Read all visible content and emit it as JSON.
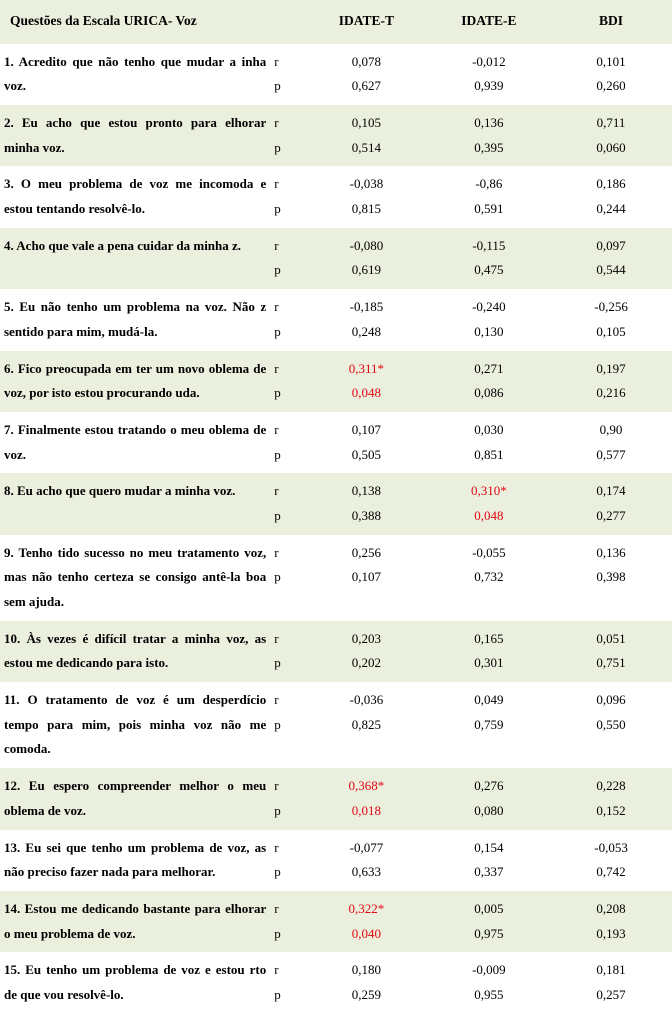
{
  "colors": {
    "band": "#eaf0dd",
    "bg": "#ffffff",
    "text": "#000000",
    "significant": "#e30613"
  },
  "fonts": {
    "family": "Times New Roman",
    "header_size_pt": 10,
    "body_size_pt": 10,
    "bold_questions": true
  },
  "header": {
    "question": "Questões da Escala URICA- Voz",
    "c1": "IDATE-T",
    "c2": "IDATE-E",
    "c3": "BDI"
  },
  "stat_labels": {
    "r": "r",
    "p": "p"
  },
  "rows": [
    {
      "q": "1. Acredito que não tenho que mudar a inha voz.",
      "r": {
        "c1": "0,078",
        "c2": "-0,012",
        "c3": "0,101"
      },
      "p": {
        "c1": "0,627",
        "c2": "0,939",
        "c3": "0,260"
      },
      "sig": {}
    },
    {
      "q": "2. Eu acho que estou pronto para elhorar minha voz.",
      "r": {
        "c1": "0,105",
        "c2": "0,136",
        "c3": "0,711"
      },
      "p": {
        "c1": "0,514",
        "c2": "0,395",
        "c3": "0,060"
      },
      "sig": {}
    },
    {
      "q": "3. O meu problema de voz me incomoda e  estou tentando resolvê-lo.",
      "r": {
        "c1": "-0,038",
        "c2": "-0,86",
        "c3": "0,186"
      },
      "p": {
        "c1": "0,815",
        "c2": "0,591",
        "c3": "0,244"
      },
      "sig": {}
    },
    {
      "q": "4. Acho que vale a pena cuidar da minha z.",
      "r": {
        "c1": "-0,080",
        "c2": "-0,115",
        "c3": "0,097"
      },
      "p": {
        "c1": "0,619",
        "c2": "0,475",
        "c3": "0,544"
      },
      "sig": {}
    },
    {
      "q": "5. Eu não tenho um problema na voz. Não z sentido para mim, mudá-la.",
      "r": {
        "c1": "-0,185",
        "c2": "-0,240",
        "c3": "-0,256"
      },
      "p": {
        "c1": "0,248",
        "c2": "0,130",
        "c3": "0,105"
      },
      "sig": {}
    },
    {
      "q": "6. Fico preocupada em ter um novo oblema de voz, por isto estou procurando uda.",
      "r": {
        "c1": "0,311*",
        "c2": "0,271",
        "c3": "0,197"
      },
      "p": {
        "c1": "0,048",
        "c2": "0,086",
        "c3": "0,216"
      },
      "sig": {
        "c1": true
      }
    },
    {
      "q": "7. Finalmente estou tratando o meu oblema de voz.",
      "r": {
        "c1": "0,107",
        "c2": "0,030",
        "c3": "0,90"
      },
      "p": {
        "c1": "0,505",
        "c2": "0,851",
        "c3": "0,577"
      },
      "sig": {}
    },
    {
      "q": "8. Eu acho que quero mudar a minha voz.",
      "r": {
        "c1": "0,138",
        "c2": "0,310*",
        "c3": "0,174"
      },
      "p": {
        "c1": "0,388",
        "c2": "0,048",
        "c3": "0,277"
      },
      "sig": {
        "c2": true
      }
    },
    {
      "q": "9. Tenho tido sucesso no meu tratamento  voz, mas não tenho certeza se consigo antê-la boa sem ajuda.",
      "r": {
        "c1": "0,256",
        "c2": "-0,055",
        "c3": "0,136"
      },
      "p": {
        "c1": "0,107",
        "c2": "0,732",
        "c3": "0,398"
      },
      "sig": {}
    },
    {
      "q": "10. Às vezes é difícil tratar a minha voz, as estou me dedicando para isto.",
      "r": {
        "c1": "0,203",
        "c2": "0,165",
        "c3": "0,051"
      },
      "p": {
        "c1": "0,202",
        "c2": "0,301",
        "c3": "0,751"
      },
      "sig": {}
    },
    {
      "q": "11. O tratamento de voz é um desperdício  tempo para mim, pois minha voz não me comoda.",
      "r": {
        "c1": "-0,036",
        "c2": "0,049",
        "c3": "0,096"
      },
      "p": {
        "c1": "0,825",
        "c2": "0,759",
        "c3": "0,550"
      },
      "sig": {}
    },
    {
      "q": "12. Eu espero compreender melhor o meu oblema de voz.",
      "r": {
        "c1": "0,368*",
        "c2": "0,276",
        "c3": "0,228"
      },
      "p": {
        "c1": "0,018",
        "c2": "0,080",
        "c3": "0,152"
      },
      "sig": {
        "c1": true
      }
    },
    {
      "q": "13. Eu sei que tenho um problema de voz, as não preciso fazer nada para melhorar.",
      "r": {
        "c1": "-0,077",
        "c2": "0,154",
        "c3": "-0,053"
      },
      "p": {
        "c1": "0,633",
        "c2": "0,337",
        "c3": "0,742"
      },
      "sig": {}
    },
    {
      "q": "14. Estou me dedicando bastante para elhorar o meu problema de voz.",
      "r": {
        "c1": "0,322*",
        "c2": "0,005",
        "c3": "0,208"
      },
      "p": {
        "c1": "0,040",
        "c2": "0,975",
        "c3": "0,193"
      },
      "sig": {
        "c1": true
      }
    },
    {
      "q": "15. Eu tenho um problema de voz e estou rto de que vou resolvê-lo.",
      "r": {
        "c1": "0,180",
        "c2": "-0,009",
        "c3": "0,181"
      },
      "p": {
        "c1": "0,259",
        "c2": "0,955",
        "c3": "0,257"
      },
      "sig": {}
    }
  ]
}
